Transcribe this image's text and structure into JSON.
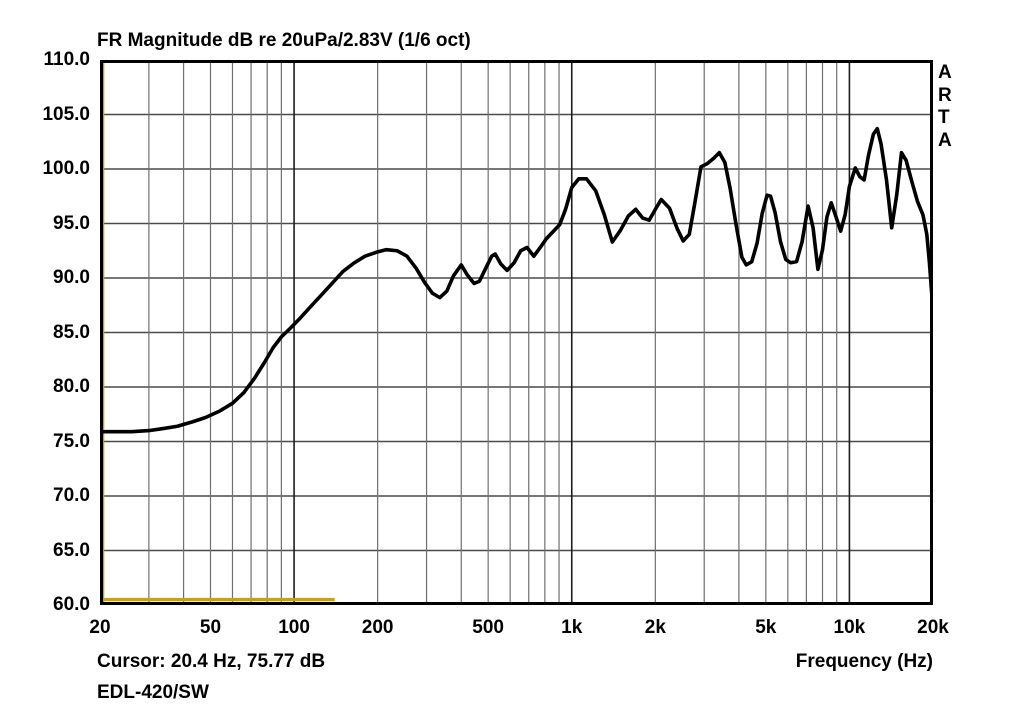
{
  "title": "FR Magnitude dB re 20uPa/2.83V (1/6 oct)",
  "watermark": "ARTA",
  "footer": {
    "cursor_readout": "Cursor: 20.4 Hz, 75.77 dB",
    "device_label": "EDL-420/SW",
    "x_axis_label": "Frequency (Hz)"
  },
  "colors": {
    "background": "#ffffff",
    "text": "#000000",
    "curve": "#000000",
    "marker_yellow": "#c8a40a",
    "grid_minor": "#6f6f6f",
    "grid_major": "#1c1c1c",
    "grid_horizontal": "#4a4a4a",
    "border": "#000000"
  },
  "chart_data": {
    "type": "line",
    "title": "FR Magnitude dB re 20uPa/2.83V (1/6 oct)",
    "xlabel": "Frequency (Hz)",
    "ylabel": "FR Magnitude dB re 20uPa/2.83V",
    "x_scale": "log",
    "xlim_hz": [
      20,
      20000
    ],
    "ylim_db": [
      60,
      110
    ],
    "grid": "on",
    "legend": "none",
    "y_ticks": [
      {
        "value": 110,
        "label": "110.0"
      },
      {
        "value": 105,
        "label": "105.0"
      },
      {
        "value": 100,
        "label": "100.0"
      },
      {
        "value": 95,
        "label": "95.0"
      },
      {
        "value": 90,
        "label": "90.0"
      },
      {
        "value": 85,
        "label": "85.0"
      },
      {
        "value": 80,
        "label": "80.0"
      },
      {
        "value": 75,
        "label": "75.0"
      },
      {
        "value": 70,
        "label": "70.0"
      },
      {
        "value": 65,
        "label": "65.0"
      },
      {
        "value": 60,
        "label": "60.0"
      }
    ],
    "x_ticks": [
      {
        "value": 20,
        "label": "20"
      },
      {
        "value": 50,
        "label": "50"
      },
      {
        "value": 100,
        "label": "100"
      },
      {
        "value": 200,
        "label": "200"
      },
      {
        "value": 500,
        "label": "500"
      },
      {
        "value": 1000,
        "label": "1k"
      },
      {
        "value": 2000,
        "label": "2k"
      },
      {
        "value": 5000,
        "label": "5k"
      },
      {
        "value": 10000,
        "label": "10k"
      },
      {
        "value": 20000,
        "label": "20k"
      }
    ],
    "minor_grid_hz": [
      30,
      40,
      50,
      60,
      70,
      80,
      90,
      200,
      300,
      400,
      500,
      600,
      700,
      800,
      900,
      2000,
      3000,
      4000,
      5000,
      6000,
      7000,
      8000,
      9000
    ],
    "major_grid_hz": [
      100,
      1000,
      10000
    ],
    "horizontal_grid_db": [
      65,
      70,
      75,
      80,
      85,
      90,
      95,
      100,
      105
    ],
    "cursor": {
      "freq_hz": 20.4,
      "level_db": 75.77
    },
    "overlays": [
      {
        "name": "cursor-vertical-line",
        "kind": "vline",
        "x_hz": 20.4,
        "color": "#c8a40a"
      },
      {
        "name": "marker-baseline",
        "kind": "hsegment",
        "level_db": 60.5,
        "span_hz": [
          20,
          140
        ],
        "color": "#c8a40a"
      }
    ],
    "series": [
      {
        "name": "frequency-response",
        "color": "#000000",
        "stroke_width": 3.6,
        "points_hz_db": [
          [
            20,
            75.9
          ],
          [
            23,
            75.9
          ],
          [
            26,
            75.9
          ],
          [
            30,
            76.0
          ],
          [
            34,
            76.2
          ],
          [
            38,
            76.4
          ],
          [
            43,
            76.8
          ],
          [
            48,
            77.2
          ],
          [
            54,
            77.8
          ],
          [
            60,
            78.5
          ],
          [
            66,
            79.5
          ],
          [
            72,
            80.8
          ],
          [
            78,
            82.2
          ],
          [
            84,
            83.6
          ],
          [
            90,
            84.6
          ],
          [
            97,
            85.4
          ],
          [
            105,
            86.3
          ],
          [
            115,
            87.4
          ],
          [
            125,
            88.4
          ],
          [
            137,
            89.5
          ],
          [
            150,
            90.6
          ],
          [
            165,
            91.4
          ],
          [
            180,
            92.0
          ],
          [
            200,
            92.4
          ],
          [
            215,
            92.6
          ],
          [
            235,
            92.5
          ],
          [
            255,
            92.0
          ],
          [
            275,
            90.9
          ],
          [
            295,
            89.6
          ],
          [
            315,
            88.6
          ],
          [
            335,
            88.2
          ],
          [
            355,
            88.8
          ],
          [
            375,
            90.2
          ],
          [
            400,
            91.2
          ],
          [
            420,
            90.3
          ],
          [
            445,
            89.5
          ],
          [
            465,
            89.7
          ],
          [
            490,
            90.9
          ],
          [
            515,
            92.0
          ],
          [
            530,
            92.2
          ],
          [
            555,
            91.3
          ],
          [
            585,
            90.7
          ],
          [
            620,
            91.4
          ],
          [
            655,
            92.5
          ],
          [
            690,
            92.8
          ],
          [
            730,
            92.0
          ],
          [
            770,
            92.8
          ],
          [
            810,
            93.6
          ],
          [
            860,
            94.3
          ],
          [
            905,
            94.9
          ],
          [
            950,
            96.3
          ],
          [
            1000,
            98.3
          ],
          [
            1060,
            99.1
          ],
          [
            1130,
            99.1
          ],
          [
            1220,
            98.0
          ],
          [
            1310,
            95.8
          ],
          [
            1400,
            93.3
          ],
          [
            1500,
            94.4
          ],
          [
            1600,
            95.7
          ],
          [
            1700,
            96.3
          ],
          [
            1800,
            95.5
          ],
          [
            1900,
            95.3
          ],
          [
            2000,
            96.3
          ],
          [
            2100,
            97.2
          ],
          [
            2250,
            96.4
          ],
          [
            2400,
            94.5
          ],
          [
            2520,
            93.4
          ],
          [
            2650,
            94.0
          ],
          [
            2780,
            97.0
          ],
          [
            2920,
            100.2
          ],
          [
            3080,
            100.5
          ],
          [
            3250,
            101.0
          ],
          [
            3400,
            101.5
          ],
          [
            3560,
            100.6
          ],
          [
            3720,
            98.2
          ],
          [
            3900,
            95.0
          ],
          [
            4100,
            91.9
          ],
          [
            4250,
            91.2
          ],
          [
            4450,
            91.5
          ],
          [
            4650,
            93.2
          ],
          [
            4850,
            95.9
          ],
          [
            5050,
            97.6
          ],
          [
            5200,
            97.5
          ],
          [
            5400,
            96.0
          ],
          [
            5650,
            93.3
          ],
          [
            5900,
            91.7
          ],
          [
            6150,
            91.4
          ],
          [
            6450,
            91.5
          ],
          [
            6750,
            93.3
          ],
          [
            7100,
            96.6
          ],
          [
            7400,
            94.6
          ],
          [
            7700,
            90.8
          ],
          [
            8000,
            92.6
          ],
          [
            8300,
            95.6
          ],
          [
            8600,
            96.9
          ],
          [
            8950,
            95.6
          ],
          [
            9300,
            94.3
          ],
          [
            9650,
            95.8
          ],
          [
            10000,
            98.4
          ],
          [
            10500,
            100.1
          ],
          [
            10900,
            99.3
          ],
          [
            11300,
            99.0
          ],
          [
            11700,
            101.2
          ],
          [
            12200,
            103.2
          ],
          [
            12600,
            103.7
          ],
          [
            13000,
            102.3
          ],
          [
            13600,
            99.0
          ],
          [
            14200,
            94.6
          ],
          [
            14800,
            97.6
          ],
          [
            15400,
            101.5
          ],
          [
            16000,
            100.8
          ],
          [
            16800,
            98.8
          ],
          [
            17600,
            97.0
          ],
          [
            18400,
            95.8
          ],
          [
            19000,
            94.0
          ],
          [
            19400,
            91.5
          ],
          [
            19800,
            88.5
          ],
          [
            20000,
            87.8
          ]
        ]
      }
    ]
  }
}
